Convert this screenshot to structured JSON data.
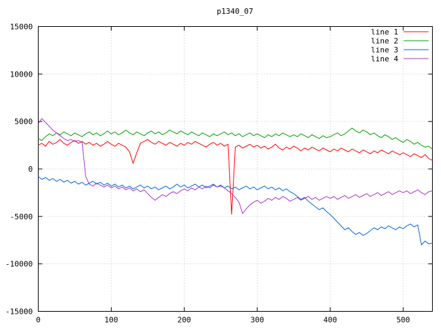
{
  "chart_data": {
    "type": "line",
    "title": "p1340_07",
    "xlabel": "",
    "ylabel": "",
    "xlim": [
      0,
      540
    ],
    "ylim": [
      -15000,
      15000
    ],
    "x_ticks": [
      0,
      100,
      200,
      300,
      400,
      500
    ],
    "y_ticks": [
      -15000,
      -10000,
      -5000,
      0,
      5000,
      10000,
      15000
    ],
    "grid": true,
    "legend_position": "top-right",
    "x_start": 0,
    "x_step": 5,
    "series": [
      {
        "name": "line 1",
        "color": "#ff0000",
        "values": [
          2500,
          2700,
          2400,
          2900,
          2600,
          2800,
          3100,
          2700,
          2500,
          2800,
          3000,
          2700,
          2900,
          2600,
          2800,
          2500,
          2700,
          2400,
          2600,
          2900,
          2600,
          2400,
          2700,
          2500,
          2300,
          1800,
          600,
          1700,
          2700,
          2900,
          3100,
          2800,
          2600,
          2900,
          2700,
          2500,
          2800,
          2600,
          2400,
          2700,
          2500,
          2800,
          2600,
          2900,
          2700,
          2500,
          2300,
          2600,
          2800,
          2500,
          2700,
          2400,
          2600,
          -4800,
          2300,
          2500,
          2200,
          2400,
          2600,
          2300,
          2500,
          2200,
          2400,
          2100,
          2300,
          2600,
          2200,
          2000,
          2300,
          2100,
          2400,
          2200,
          1900,
          2200,
          2000,
          2300,
          2100,
          1900,
          2200,
          2000,
          1800,
          2100,
          1900,
          2200,
          2000,
          1800,
          2100,
          1900,
          1700,
          2000,
          1800,
          1600,
          1900,
          1700,
          2000,
          1800,
          1600,
          1900,
          1700,
          1500,
          1700,
          1500,
          1300,
          1600,
          1400,
          1200,
          1500,
          1100,
          900
        ]
      },
      {
        "name": "line 2",
        "color": "#00a000",
        "values": [
          3200,
          3000,
          3400,
          3700,
          3500,
          3800,
          3600,
          3900,
          3700,
          3500,
          3800,
          3600,
          3400,
          3700,
          3900,
          3600,
          3800,
          3500,
          3700,
          4000,
          3700,
          3900,
          3600,
          3800,
          4100,
          3800,
          3600,
          3900,
          3700,
          3500,
          3800,
          4000,
          3700,
          3900,
          3600,
          3800,
          4100,
          3900,
          3700,
          4000,
          3800,
          3600,
          3900,
          3700,
          3500,
          3800,
          3600,
          3400,
          3700,
          3500,
          3700,
          3900,
          3600,
          3800,
          3500,
          3700,
          3400,
          3600,
          3800,
          3500,
          3700,
          3500,
          3300,
          3600,
          3400,
          3700,
          3500,
          3800,
          3600,
          3400,
          3600,
          3400,
          3700,
          3500,
          3300,
          3600,
          3400,
          3200,
          3500,
          3300,
          3400,
          3600,
          3800,
          3500,
          3700,
          4000,
          4300,
          4000,
          3800,
          4100,
          3900,
          3600,
          3800,
          3500,
          3300,
          3600,
          3400,
          3100,
          3300,
          3000,
          2800,
          3100,
          2900,
          2600,
          2800,
          2500,
          2300,
          2400,
          2100
        ]
      },
      {
        "name": "line 3",
        "color": "#0066dd",
        "values": [
          -800,
          -1100,
          -900,
          -1200,
          -1000,
          -1300,
          -1100,
          -1400,
          -1200,
          -1500,
          -1300,
          -1600,
          -1400,
          -1700,
          -1500,
          -1300,
          -1600,
          -1400,
          -1700,
          -1500,
          -1800,
          -1600,
          -1900,
          -1700,
          -2000,
          -1800,
          -2100,
          -1900,
          -1700,
          -2000,
          -1800,
          -2100,
          -1900,
          -2200,
          -2000,
          -1800,
          -2100,
          -1900,
          -1600,
          -1900,
          -1700,
          -2000,
          -1800,
          -1600,
          -1900,
          -1700,
          -2000,
          -1800,
          -1600,
          -1900,
          -1700,
          -2000,
          -1800,
          -2100,
          -1900,
          -2200,
          -2000,
          -1800,
          -2100,
          -1900,
          -2200,
          -2000,
          -1800,
          -2100,
          -1900,
          -2200,
          -2000,
          -2300,
          -2100,
          -2400,
          -2600,
          -2900,
          -3200,
          -3000,
          -3400,
          -3700,
          -4000,
          -4300,
          -4100,
          -4500,
          -4800,
          -5200,
          -5600,
          -6000,
          -6400,
          -6200,
          -6600,
          -6900,
          -6700,
          -7000,
          -6800,
          -6500,
          -6200,
          -6400,
          -6100,
          -6300,
          -6000,
          -6200,
          -6400,
          -6100,
          -6300,
          -6000,
          -5800,
          -6100,
          -5900,
          -8000,
          -7600,
          -7900,
          -7800
        ]
      },
      {
        "name": "line 4",
        "color": "#aa33cc",
        "values": [
          4800,
          5300,
          4900,
          4500,
          4100,
          3800,
          3500,
          3200,
          3000,
          3100,
          2900,
          3000,
          2800,
          -800,
          -1600,
          -1800,
          -1500,
          -1700,
          -1900,
          -1700,
          -2000,
          -1800,
          -2100,
          -1900,
          -2200,
          -2000,
          -2300,
          -2100,
          -2400,
          -2200,
          -2600,
          -3000,
          -3300,
          -3000,
          -2700,
          -2900,
          -2600,
          -2400,
          -2600,
          -2300,
          -2100,
          -2300,
          -2000,
          -2200,
          -1900,
          -2100,
          -1800,
          -2000,
          -1700,
          -1900,
          -1800,
          -2000,
          -2300,
          -2600,
          -3000,
          -3500,
          -4700,
          -4200,
          -3800,
          -3500,
          -3300,
          -3600,
          -3400,
          -3100,
          -3300,
          -3000,
          -3200,
          -2900,
          -3100,
          -3400,
          -3200,
          -3000,
          -3300,
          -3100,
          -2900,
          -3200,
          -3000,
          -3300,
          -3100,
          -2900,
          -3100,
          -2900,
          -3200,
          -3000,
          -2800,
          -3100,
          -2900,
          -2700,
          -3000,
          -2800,
          -2600,
          -2900,
          -2700,
          -2500,
          -2800,
          -2600,
          -2400,
          -2700,
          -2500,
          -2300,
          -2500,
          -2300,
          -2600,
          -2400,
          -2200,
          -2500,
          -2700,
          -2400,
          -2300
        ]
      }
    ],
    "style": {
      "grid_color": "#c0c0c0",
      "axis_color": "#000000",
      "background": "#ffffff"
    }
  }
}
